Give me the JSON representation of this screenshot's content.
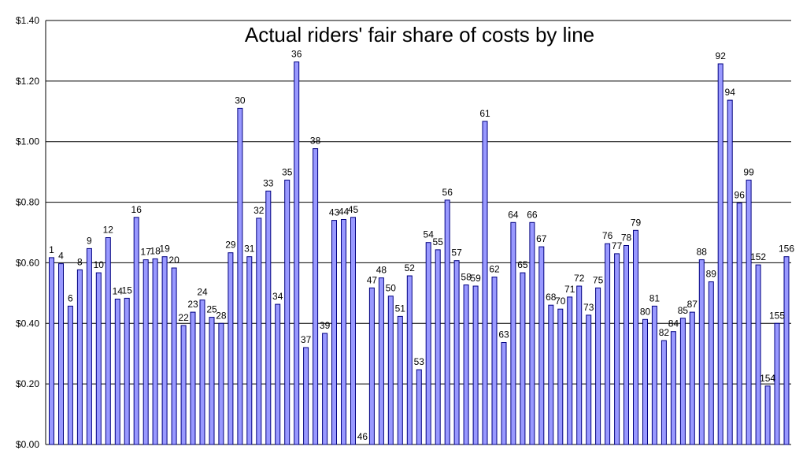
{
  "chart_data": {
    "type": "bar",
    "title": "Actual riders' fair share of costs by line",
    "xlabel": "",
    "ylabel": "",
    "ylim": [
      0,
      1.4
    ],
    "grid": true,
    "y_ticks": [
      "$0.00",
      "$0.20",
      "$0.40",
      "$0.60",
      "$0.80",
      "$1.00",
      "$1.20",
      "$1.40"
    ],
    "categories": [
      "1",
      "4",
      "6",
      "8",
      "9",
      "10",
      "12",
      "14",
      "15",
      "16",
      "17",
      "18",
      "19",
      "20",
      "22",
      "23",
      "24",
      "25",
      "28",
      "29",
      "30",
      "31",
      "32",
      "33",
      "34",
      "35",
      "36",
      "37",
      "38",
      "39",
      "43",
      "44",
      "45",
      "46",
      "47",
      "48",
      "50",
      "51",
      "52",
      "53",
      "54",
      "55",
      "56",
      "57",
      "58",
      "59",
      "61",
      "62",
      "63",
      "64",
      "65",
      "66",
      "67",
      "68",
      "70",
      "71",
      "72",
      "73",
      "75",
      "76",
      "77",
      "78",
      "79",
      "80",
      "81",
      "82",
      "84",
      "85",
      "87",
      "88",
      "89",
      "92",
      "94",
      "96",
      "99",
      "152",
      "154",
      "155",
      "156"
    ],
    "values": [
      0.617,
      0.597,
      0.457,
      0.577,
      0.647,
      0.567,
      0.683,
      0.48,
      0.483,
      0.75,
      0.61,
      0.613,
      0.62,
      0.583,
      0.393,
      0.437,
      0.477,
      0.42,
      0.4,
      0.633,
      1.11,
      0.62,
      0.747,
      0.837,
      0.463,
      0.873,
      1.263,
      0.32,
      0.977,
      0.367,
      0.74,
      0.743,
      0.75,
      0.0,
      0.517,
      0.55,
      0.49,
      0.423,
      0.557,
      0.247,
      0.667,
      0.643,
      0.807,
      0.607,
      0.527,
      0.523,
      1.067,
      0.553,
      0.337,
      0.733,
      0.567,
      0.733,
      0.653,
      0.46,
      0.447,
      0.487,
      0.523,
      0.427,
      0.517,
      0.663,
      0.63,
      0.657,
      0.707,
      0.413,
      0.457,
      0.343,
      0.373,
      0.417,
      0.437,
      0.61,
      0.537,
      1.257,
      1.137,
      0.797,
      0.873,
      0.593,
      0.193,
      0.4,
      0.62
    ]
  }
}
